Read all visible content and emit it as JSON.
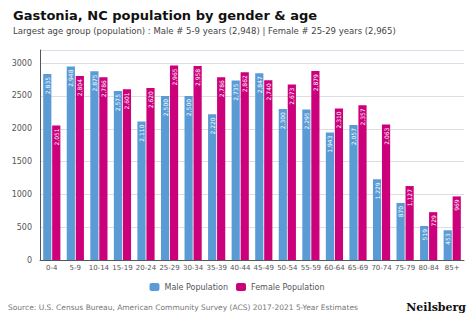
{
  "chart_data": {
    "type": "bar",
    "title": "Gastonia, NC population by gender & age",
    "subtitle": "Largest age group (population) : Male # 5-9 years (2,948) | Female # 25-29 years (2,965)",
    "annotations": [
      "Source: U.S. Census Bureau, American Community Survey (ACS) 2017-2021 5-Year Estimates",
      "Neilsberg"
    ],
    "categories": [
      "0-4",
      "5-9",
      "10-14",
      "15-19",
      "20-24",
      "25-29",
      "30-34",
      "35-39",
      "40-44",
      "45-49",
      "50-54",
      "55-59",
      "60-64",
      "65-69",
      "70-74",
      "75-79",
      "80-84",
      "85+"
    ],
    "series": [
      {
        "name": "Male Population",
        "color": "#5B9BD5",
        "values": [
          2835,
          2948,
          2875,
          2575,
          2110,
          2500,
          2500,
          2220,
          2735,
          2847,
          2300,
          2295,
          1943,
          2057,
          1229,
          870,
          519,
          453
        ],
        "value_labels": [
          "2,835",
          "2,948",
          "2,875",
          "2,575",
          "2,110",
          "2,500",
          "2,500",
          "2,220",
          "2,735",
          "2,847",
          "2,300",
          "2,295",
          "1,943",
          "2,057",
          "1,229",
          "870",
          "519",
          "453"
        ]
      },
      {
        "name": "Female Population",
        "color": "#CC007A",
        "values": [
          2051,
          2804,
          2786,
          2601,
          2620,
          2965,
          2958,
          2786,
          2862,
          2740,
          2673,
          2879,
          2310,
          2357,
          2063,
          1127,
          729,
          969
        ],
        "value_labels": [
          "2,051",
          "2,804",
          "2,786",
          "2,601",
          "2,620",
          "2,965",
          "2,958",
          "2,786",
          "2,862",
          "2,740",
          "2,673",
          "2,879",
          "2,310",
          "2,357",
          "2,063",
          "1,127",
          "729",
          "969"
        ]
      }
    ],
    "ylim": [
      0,
      3200
    ],
    "yticks": [
      0,
      500,
      1000,
      1500,
      2000,
      2500,
      3000
    ],
    "grid": true,
    "legend": "bottom",
    "data_labels": true
  }
}
